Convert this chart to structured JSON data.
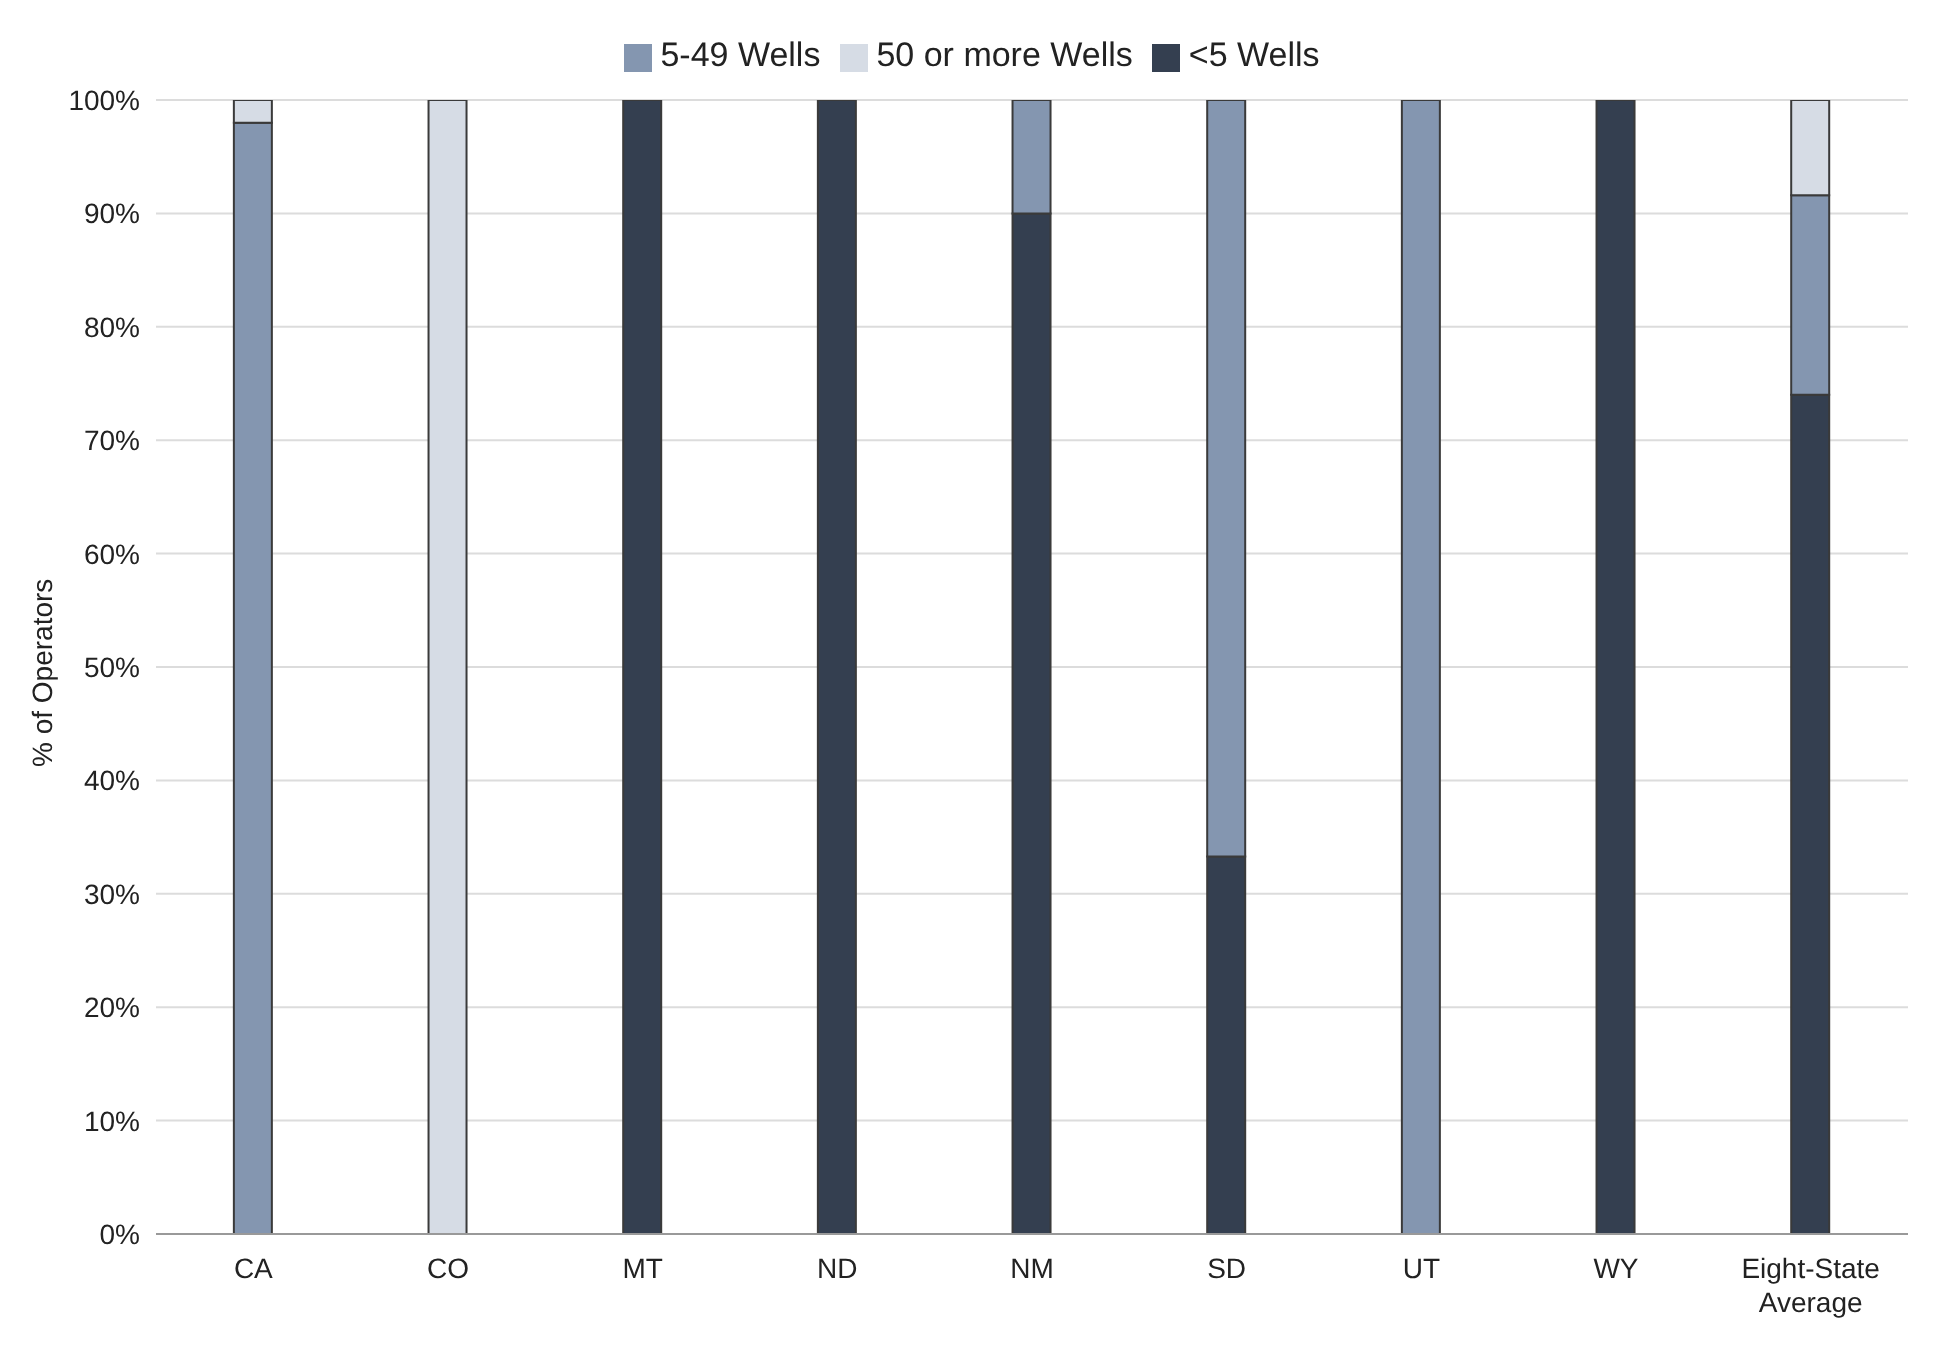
{
  "chart_data": {
    "type": "bar",
    "stacked": true,
    "ylabel": "% of Operators",
    "categories": [
      "CA",
      "CO",
      "MT",
      "ND",
      "NM",
      "SD",
      "UT",
      "WY",
      "Eight-State Average"
    ],
    "series": [
      {
        "name": "<5 Wells",
        "color": "#343f50",
        "values": [
          0,
          0,
          100,
          100,
          90,
          33.3,
          0,
          100,
          74
        ]
      },
      {
        "name": "5-49 Wells",
        "color": "#8496b0",
        "values": [
          98,
          0,
          0,
          0,
          10,
          66.7,
          100,
          0,
          17.6
        ]
      },
      {
        "name": "50 or more Wells",
        "color": "#d6dce5",
        "values": [
          2,
          100,
          0,
          0,
          0,
          0,
          0,
          0,
          8.4
        ]
      }
    ],
    "ylim": [
      0,
      100
    ],
    "yticks": [
      {
        "value": 0,
        "label": "0%"
      },
      {
        "value": 10,
        "label": "10%"
      },
      {
        "value": 20,
        "label": "20%"
      },
      {
        "value": 30,
        "label": "30%"
      },
      {
        "value": 40,
        "label": "40%"
      },
      {
        "value": 50,
        "label": "50%"
      },
      {
        "value": 60,
        "label": "60%"
      },
      {
        "value": 70,
        "label": "70%"
      },
      {
        "value": 80,
        "label": "80%"
      },
      {
        "value": 90,
        "label": "90%"
      },
      {
        "value": 100,
        "label": "100%"
      }
    ],
    "grid": "y",
    "legend": "top"
  }
}
